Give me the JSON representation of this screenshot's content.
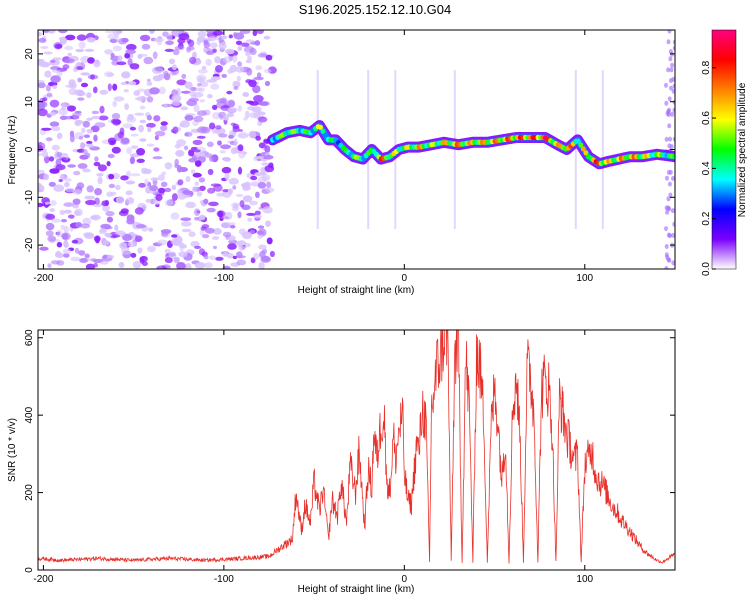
{
  "figure": {
    "title": "S196.2025.152.12.10.G04"
  },
  "chart_data": [
    {
      "type": "heatmap",
      "title": "S196.2025.152.12.10.G04",
      "xlabel": "Height of straight line (km)",
      "ylabel": "Frequency (Hz)",
      "xlim": [
        -203,
        150
      ],
      "ylim": [
        -25,
        25
      ],
      "x_ticks": [
        "-200",
        "-100",
        "0",
        "100"
      ],
      "y_ticks": [
        "20",
        "10",
        "0",
        "-10",
        "-20"
      ],
      "colorbar": {
        "label": "Normalized spectral amplitude",
        "range": [
          0,
          0.95
        ],
        "ticks": [
          "0.0",
          "0.2",
          "0.4",
          "0.6",
          "0.8"
        ],
        "colors": [
          "#ffffff",
          "#7a00ff",
          "#0000ff",
          "#00ffff",
          "#00ff00",
          "#ffff00",
          "#ff8000",
          "#ff0000",
          "#ff0080"
        ]
      },
      "noise_region_x": [
        -203,
        -73
      ],
      "signal_track": {
        "x": [
          -73,
          -65,
          -58,
          -52,
          -47,
          -42,
          -38,
          -33,
          -28,
          -23,
          -18,
          -13,
          -8,
          -3,
          2,
          8,
          15,
          22,
          30,
          38,
          46,
          54,
          62,
          70,
          78,
          85,
          90,
          96,
          102,
          108,
          113,
          119,
          125,
          132,
          140,
          150
        ],
        "y": [
          2,
          3.5,
          4,
          3.5,
          5,
          2,
          2,
          0,
          -1.5,
          -2,
          0,
          -2,
          -1.5,
          0,
          0.5,
          0.5,
          1,
          1.5,
          1,
          1.5,
          1.5,
          2,
          2.5,
          2.5,
          2.5,
          1,
          0,
          2,
          -1.5,
          -3,
          -2.5,
          -2,
          -1.5,
          -1.5,
          -1,
          -1.5
        ],
        "peak_amplitude": [
          0.5,
          0.6,
          0.55,
          0.5,
          0.65,
          0.5,
          0.45,
          0.5,
          0.6,
          0.55,
          0.5,
          0.85,
          0.7,
          0.6,
          0.65,
          0.75,
          0.6,
          0.7,
          0.8,
          0.7,
          0.75,
          0.8,
          0.85,
          0.9,
          0.95,
          0.7,
          0.9,
          0.6,
          0.75,
          0.9,
          0.7,
          0.75,
          0.8,
          0.7,
          0.6,
          0.5
        ]
      }
    },
    {
      "type": "line",
      "xlabel": "Height of straight line (km)",
      "ylabel": "SNR (10 * v/v)",
      "xlim": [
        -203,
        150
      ],
      "ylim": [
        0,
        620
      ],
      "x_ticks": [
        "-200",
        "-100",
        "0",
        "100"
      ],
      "y_ticks": [
        "600",
        "400",
        "200",
        "0"
      ],
      "color": "#e8302a",
      "series": [
        {
          "x": [
            -203,
            -190,
            -170,
            -150,
            -130,
            -110,
            -90,
            -75,
            -68,
            -62,
            -60,
            -57,
            -55,
            -52,
            -50,
            -47,
            -45,
            -42,
            -40,
            -37,
            -35,
            -32,
            -30,
            -27,
            -25,
            -22,
            -20,
            -18,
            -17,
            -15,
            -13,
            -11,
            -10,
            -8,
            -6,
            -5,
            -3,
            -1,
            0,
            2,
            4,
            5,
            7,
            8,
            10,
            12,
            14,
            15,
            17,
            18,
            20,
            22,
            24,
            26,
            28,
            30,
            32,
            34,
            36,
            38,
            40,
            42,
            44,
            46,
            48,
            50,
            52,
            54,
            56,
            58,
            60,
            62,
            64,
            66,
            68,
            70,
            72,
            74,
            76,
            78,
            80,
            82,
            84,
            86,
            88,
            90,
            92,
            94,
            96,
            98,
            100,
            102,
            104,
            106,
            108,
            110,
            112,
            114,
            116,
            118,
            120,
            122,
            125,
            128,
            131,
            134,
            137,
            140,
            143,
            146,
            150
          ],
          "y": [
            30,
            25,
            30,
            25,
            30,
            25,
            30,
            35,
            60,
            80,
            200,
            100,
            170,
            120,
            230,
            150,
            210,
            80,
            180,
            140,
            230,
            120,
            270,
            200,
            310,
            110,
            260,
            210,
            350,
            290,
            380,
            400,
            240,
            200,
            350,
            280,
            360,
            400,
            250,
            180,
            170,
            230,
            330,
            300,
            420,
            380,
            20,
            410,
            480,
            520,
            550,
            610,
            620,
            20,
            560,
            590,
            20,
            550,
            420,
            20,
            560,
            520,
            400,
            20,
            360,
            470,
            380,
            230,
            350,
            20,
            410,
            500,
            360,
            20,
            520,
            500,
            390,
            20,
            460,
            490,
            470,
            360,
            20,
            450,
            400,
            350,
            320,
            280,
            300,
            20,
            270,
            290,
            310,
            250,
            230,
            220,
            200,
            180,
            160,
            150,
            130,
            120,
            100,
            80,
            60,
            45,
            35,
            25,
            20,
            30,
            40
          ]
        }
      ]
    }
  ]
}
